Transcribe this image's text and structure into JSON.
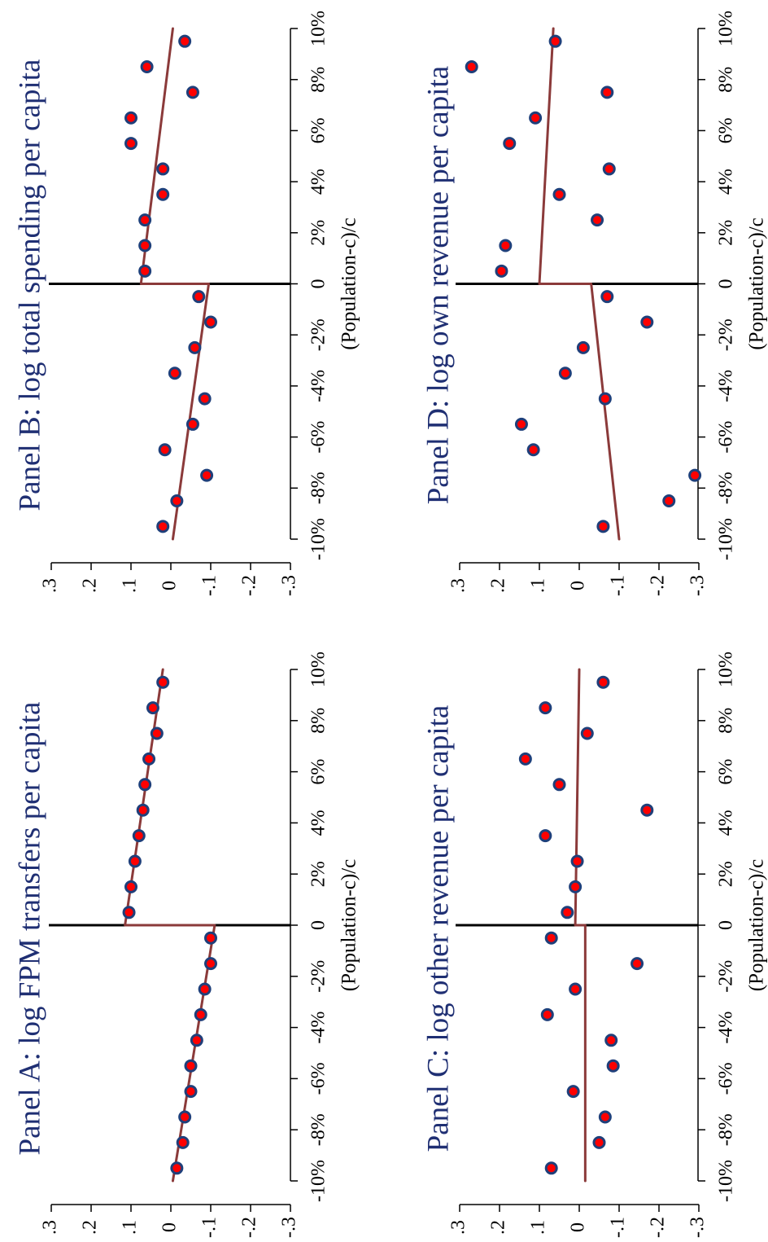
{
  "style": {
    "marker_fill": "#ff0000",
    "marker_edge": "#1f3f7a",
    "fit_line": "#8b3a3a",
    "title_color": "#1f2f73",
    "axis_color": "#000000"
  },
  "chart_data": [
    {
      "panel": "A",
      "type": "scatter",
      "title": "Panel A: log FPM transfers per capita",
      "xlabel": "(Population-c)/c",
      "ylabel": "",
      "x_ticks": [
        "-10%",
        "-8%",
        "-6%",
        "-4%",
        "-2%",
        "0",
        "2%",
        "4%",
        "6%",
        "8%",
        "10%"
      ],
      "y_ticks": [
        "-.3",
        "-.2",
        "-.1",
        "0",
        ".1",
        ".2",
        ".3"
      ],
      "xlim": [
        -10,
        10
      ],
      "ylim": [
        -0.3,
        0.3
      ],
      "cutoff": 0,
      "points": [
        {
          "x": -9.5,
          "y": -0.015
        },
        {
          "x": -8.5,
          "y": -0.03
        },
        {
          "x": -7.5,
          "y": -0.035
        },
        {
          "x": -6.5,
          "y": -0.05
        },
        {
          "x": -5.5,
          "y": -0.05
        },
        {
          "x": -4.5,
          "y": -0.065
        },
        {
          "x": -3.5,
          "y": -0.075
        },
        {
          "x": -2.5,
          "y": -0.085
        },
        {
          "x": -1.5,
          "y": -0.1
        },
        {
          "x": -0.5,
          "y": -0.1
        },
        {
          "x": 0.5,
          "y": 0.105
        },
        {
          "x": 1.5,
          "y": 0.1
        },
        {
          "x": 2.5,
          "y": 0.09
        },
        {
          "x": 3.5,
          "y": 0.08
        },
        {
          "x": 4.5,
          "y": 0.07
        },
        {
          "x": 5.5,
          "y": 0.065
        },
        {
          "x": 6.5,
          "y": 0.055
        },
        {
          "x": 7.5,
          "y": 0.035
        },
        {
          "x": 8.5,
          "y": 0.045
        },
        {
          "x": 9.5,
          "y": 0.02
        }
      ],
      "fit": [
        {
          "x_start": -10,
          "y_start": -0.005,
          "x_end": 0,
          "y_end": -0.11
        },
        {
          "x_start": 0,
          "y_start": 0.115,
          "x_end": 10,
          "y_end": 0.02
        }
      ]
    },
    {
      "panel": "B",
      "type": "scatter",
      "title": "Panel B: log total spending per capita",
      "xlabel": "(Population-c)/c",
      "ylabel": "",
      "x_ticks": [
        "-10%",
        "-8%",
        "-6%",
        "-4%",
        "-2%",
        "0",
        "2%",
        "4%",
        "6%",
        "8%",
        "10%"
      ],
      "y_ticks": [
        "-.3",
        "-.2",
        "-.1",
        "0",
        ".1",
        ".2",
        ".3"
      ],
      "xlim": [
        -10,
        10
      ],
      "ylim": [
        -0.3,
        0.3
      ],
      "cutoff": 0,
      "points": [
        {
          "x": -9.5,
          "y": 0.02
        },
        {
          "x": -8.5,
          "y": -0.015
        },
        {
          "x": -7.5,
          "y": -0.09
        },
        {
          "x": -6.5,
          "y": 0.015
        },
        {
          "x": -5.5,
          "y": -0.055
        },
        {
          "x": -4.5,
          "y": -0.085
        },
        {
          "x": -3.5,
          "y": -0.01
        },
        {
          "x": -2.5,
          "y": -0.06
        },
        {
          "x": -1.5,
          "y": -0.1
        },
        {
          "x": -0.5,
          "y": -0.07
        },
        {
          "x": 0.5,
          "y": 0.065
        },
        {
          "x": 1.5,
          "y": 0.065
        },
        {
          "x": 2.5,
          "y": 0.065
        },
        {
          "x": 3.5,
          "y": 0.02
        },
        {
          "x": 4.5,
          "y": 0.02
        },
        {
          "x": 5.5,
          "y": 0.1
        },
        {
          "x": 6.5,
          "y": 0.1
        },
        {
          "x": 7.5,
          "y": -0.055
        },
        {
          "x": 8.5,
          "y": 0.06
        },
        {
          "x": 9.5,
          "y": -0.035
        }
      ],
      "fit": [
        {
          "x_start": -10,
          "y_start": -0.005,
          "x_end": 0,
          "y_end": -0.095
        },
        {
          "x_start": 0,
          "y_start": 0.075,
          "x_end": 10,
          "y_end": -0.005
        }
      ]
    },
    {
      "panel": "C",
      "type": "scatter",
      "title": "Panel C: log other revenue per capita",
      "xlabel": "(Population-c)/c",
      "ylabel": "",
      "x_ticks": [
        "-10%",
        "-8%",
        "-6%",
        "-4%",
        "-2%",
        "0",
        "2%",
        "4%",
        "6%",
        "8%",
        "10%"
      ],
      "y_ticks": [
        "-.3",
        "-.2",
        "-.1",
        "0",
        ".1",
        ".2",
        ".3"
      ],
      "xlim": [
        -10,
        10
      ],
      "ylim": [
        -0.3,
        0.3
      ],
      "cutoff": 0,
      "points": [
        {
          "x": -9.5,
          "y": 0.07
        },
        {
          "x": -8.5,
          "y": -0.05
        },
        {
          "x": -7.5,
          "y": -0.065
        },
        {
          "x": -6.5,
          "y": 0.015
        },
        {
          "x": -5.5,
          "y": -0.085
        },
        {
          "x": -4.5,
          "y": -0.08
        },
        {
          "x": -3.5,
          "y": 0.08
        },
        {
          "x": -2.5,
          "y": 0.01
        },
        {
          "x": -1.5,
          "y": -0.145
        },
        {
          "x": -0.5,
          "y": 0.07
        },
        {
          "x": 0.5,
          "y": 0.03
        },
        {
          "x": 1.5,
          "y": 0.01
        },
        {
          "x": 2.5,
          "y": 0.005
        },
        {
          "x": 3.5,
          "y": 0.085
        },
        {
          "x": 4.5,
          "y": -0.17
        },
        {
          "x": 5.5,
          "y": 0.05
        },
        {
          "x": 6.5,
          "y": 0.135
        },
        {
          "x": 7.5,
          "y": -0.02
        },
        {
          "x": 8.5,
          "y": 0.085
        },
        {
          "x": 9.5,
          "y": -0.06
        }
      ],
      "fit": [
        {
          "x_start": -10,
          "y_start": -0.015,
          "x_end": 0,
          "y_end": -0.015
        },
        {
          "x_start": 0,
          "y_start": 0.01,
          "x_end": 10,
          "y_end": 0.0
        }
      ]
    },
    {
      "panel": "D",
      "type": "scatter",
      "title": "Panel D: log own revenue per capita",
      "xlabel": "(Population-c)/c",
      "ylabel": "",
      "x_ticks": [
        "-10%",
        "-8%",
        "-6%",
        "-4%",
        "-2%",
        "0",
        "2%",
        "4%",
        "6%",
        "8%",
        "10%"
      ],
      "y_ticks": [
        "-.3",
        "-.2",
        "-.1",
        "0",
        ".1",
        ".2",
        ".3"
      ],
      "xlim": [
        -10,
        10
      ],
      "ylim": [
        -0.3,
        0.3
      ],
      "cutoff": 0,
      "points": [
        {
          "x": -9.5,
          "y": -0.06
        },
        {
          "x": -8.5,
          "y": -0.225
        },
        {
          "x": -7.5,
          "y": -0.29
        },
        {
          "x": -6.5,
          "y": 0.115
        },
        {
          "x": -5.5,
          "y": 0.145
        },
        {
          "x": -4.5,
          "y": -0.065
        },
        {
          "x": -3.5,
          "y": 0.035
        },
        {
          "x": -2.5,
          "y": -0.01
        },
        {
          "x": -1.5,
          "y": -0.17
        },
        {
          "x": -0.5,
          "y": -0.07
        },
        {
          "x": 0.5,
          "y": 0.195
        },
        {
          "x": 1.5,
          "y": 0.185
        },
        {
          "x": 2.5,
          "y": -0.045
        },
        {
          "x": 3.5,
          "y": 0.05
        },
        {
          "x": 4.5,
          "y": -0.075
        },
        {
          "x": 5.5,
          "y": 0.175
        },
        {
          "x": 6.5,
          "y": 0.11
        },
        {
          "x": 7.5,
          "y": -0.07
        },
        {
          "x": 8.5,
          "y": 0.27
        },
        {
          "x": 9.5,
          "y": 0.06
        }
      ],
      "fit": [
        {
          "x_start": -10,
          "y_start": -0.1,
          "x_end": 0,
          "y_end": -0.03
        },
        {
          "x_start": 0,
          "y_start": 0.1,
          "x_end": 10,
          "y_end": 0.065
        }
      ]
    }
  ]
}
